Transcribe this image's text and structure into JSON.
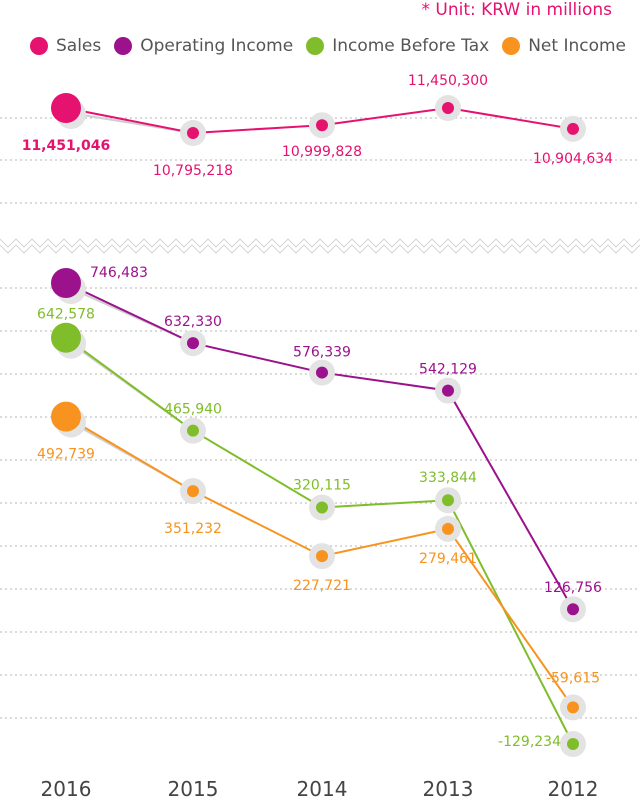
{
  "unit_note": "* Unit: KRW in millions",
  "colors": {
    "sales": "#e5126f",
    "operating_income": "#9b128c",
    "income_before_tax": "#7fbd2a",
    "net_income": "#f7931e",
    "grid": "#b5b5b5",
    "halo": "#e3e3e3",
    "axis_text": "#444444"
  },
  "chart_data": {
    "type": "line",
    "x": [
      "2016",
      "2015",
      "2014",
      "2013",
      "2012"
    ],
    "axis_break": true,
    "series": [
      {
        "key": "sales",
        "name": "Sales",
        "values": [
          11451046,
          10795218,
          10999828,
          11450300,
          10904634
        ],
        "labels": [
          "11,451,046",
          "10,795,218",
          "10,999,828",
          "11,450,300",
          "10,904,634"
        ]
      },
      {
        "key": "operating_income",
        "name": "Operating Income",
        "values": [
          746483,
          632330,
          576339,
          542129,
          126756
        ],
        "labels": [
          "746,483",
          "632,330",
          "576,339",
          "542,129",
          "126,756"
        ]
      },
      {
        "key": "income_before_tax",
        "name": "Income Before Tax",
        "values": [
          642578,
          465940,
          320115,
          333844,
          -129234
        ],
        "labels": [
          "642,578",
          "465,940",
          "320,115",
          "333,844",
          "-129,234"
        ]
      },
      {
        "key": "net_income",
        "name": "Net Income",
        "values": [
          492739,
          351232,
          227721,
          279461,
          -59615
        ],
        "labels": [
          "492,739",
          "351,232",
          "227,721",
          "279,461",
          "-59,615"
        ]
      }
    ],
    "grid": true,
    "legend_position": "top-left"
  }
}
